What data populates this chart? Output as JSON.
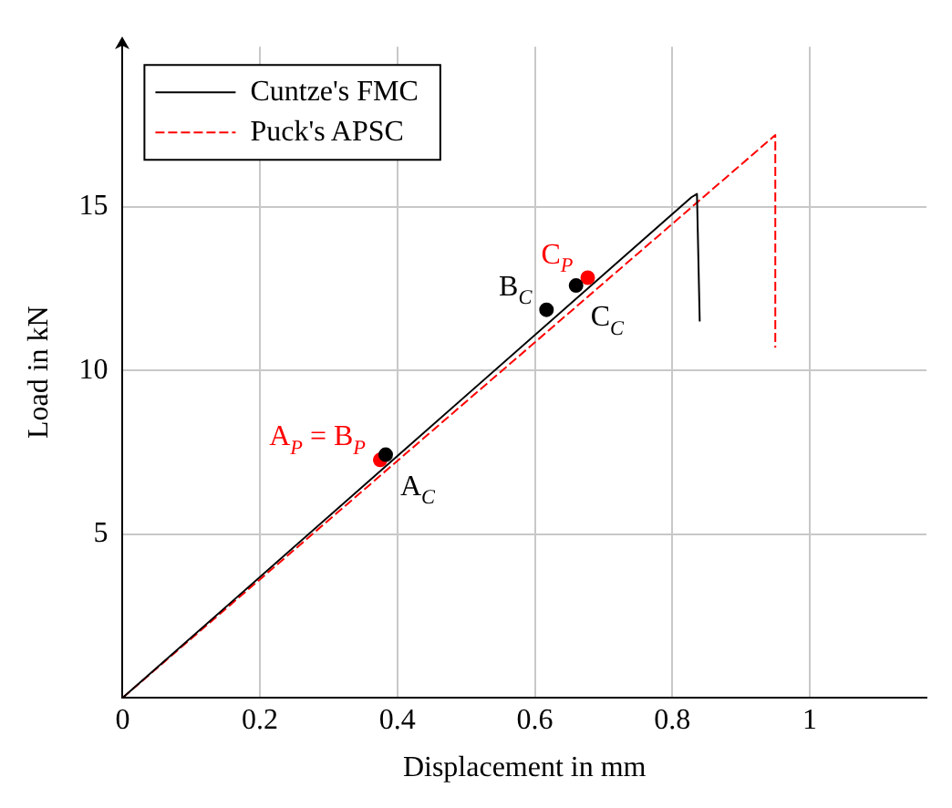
{
  "chart_data": {
    "type": "line",
    "xlabel": "Displacement in mm",
    "ylabel": "Load in kN",
    "xlim": [
      0,
      1.17
    ],
    "ylim": [
      0,
      19.9
    ],
    "xticks": [
      0,
      0.2,
      0.4,
      0.6,
      0.8,
      1
    ],
    "yticks": [
      5,
      10,
      15
    ],
    "grid": true,
    "legend": "top left",
    "series": [
      {
        "name": "Cuntze's FMC",
        "color": "#000000",
        "line_style": "solid",
        "marker": "none",
        "x": [
          0,
          0.828,
          0.836,
          0.84
        ],
        "values": [
          0,
          15.3,
          15.4,
          11.5
        ]
      },
      {
        "name": "Puck's APSC",
        "color": "#ff0000",
        "line_style": "dashed",
        "marker": "none",
        "x": [
          0,
          0.95,
          0.95
        ],
        "values": [
          0,
          17.2,
          10.7
        ]
      },
      {
        "type": "scatter",
        "color": "#000000",
        "marker": "circle",
        "x": [
          0.383,
          0.617,
          0.66
        ],
        "values": [
          7.43,
          11.86,
          12.6
        ]
      },
      {
        "type": "scatter",
        "color": "#ff0000",
        "marker": "circle",
        "x": [
          0.375,
          0.677
        ],
        "values": [
          7.27,
          12.84
        ]
      }
    ],
    "annotations": [
      {
        "text": "A$_{C}$",
        "x": 0.383,
        "y": 7.43
      },
      {
        "text": "B$_{C}$",
        "x": 0.617,
        "y": 11.86
      },
      {
        "text": "C$_{C}$",
        "x": 0.66,
        "y": 12.6
      },
      {
        "text": "A$_{P}$ = B$_{P}$",
        "x": 0.375,
        "y": 7.27
      },
      {
        "text": "C$_{P}$",
        "x": 0.677,
        "y": 12.84
      }
    ]
  }
}
